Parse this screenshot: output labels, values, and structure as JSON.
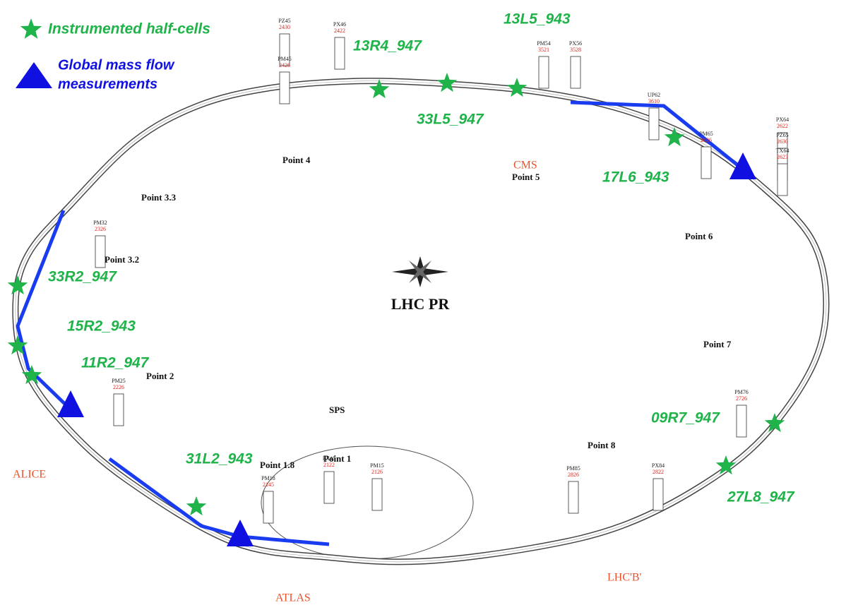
{
  "legend": {
    "sensor": "Instrumented half-cells",
    "flow_line1": "Global mass flow",
    "flow_line2": "measurements"
  },
  "title": "LHC PR",
  "sps": "SPS",
  "sensors": [
    "13R4_947",
    "33L5_947",
    "13L5_943",
    "17L6_943",
    "33R2_947",
    "15R2_943",
    "11R2_947",
    "31L2_943",
    "09R7_947",
    "27L8_947"
  ],
  "points": [
    "Point 4",
    "Point 5",
    "Point 3.3",
    "Point 3.2",
    "Point 6",
    "Point 7",
    "Point 2",
    "Point 8",
    "Point 1.8",
    "Point 1"
  ],
  "experiments": [
    "CMS",
    "ALICE",
    "ATLAS",
    "LHC'B'"
  ],
  "structures": [
    {
      "label": "PZ45",
      "code": "2430"
    },
    {
      "label": "PX46",
      "code": "2422"
    },
    {
      "label": "PM45",
      "code": "2426"
    },
    {
      "label": "PX64",
      "code": "2622"
    },
    {
      "label": "PZ65",
      "code": "2630"
    },
    {
      "label": "TX64",
      "code": "2623"
    },
    {
      "label": "PM65",
      "code": "2626"
    },
    {
      "label": "UP62",
      "code": "3610"
    },
    {
      "label": "PM32",
      "code": "2326"
    },
    {
      "label": "PM76",
      "code": "2726"
    },
    {
      "label": "PM85",
      "code": "2826"
    },
    {
      "label": "PX84",
      "code": "2822"
    },
    {
      "label": "PM15",
      "code": "2126"
    },
    {
      "label": "PX15",
      "code": "2122"
    },
    {
      "label": "PM25",
      "code": "2226"
    },
    {
      "label": "PM18",
      "code": "2145"
    },
    {
      "label": "PM54",
      "code": "3521"
    },
    {
      "label": "PX56",
      "code": "3528"
    }
  ]
}
